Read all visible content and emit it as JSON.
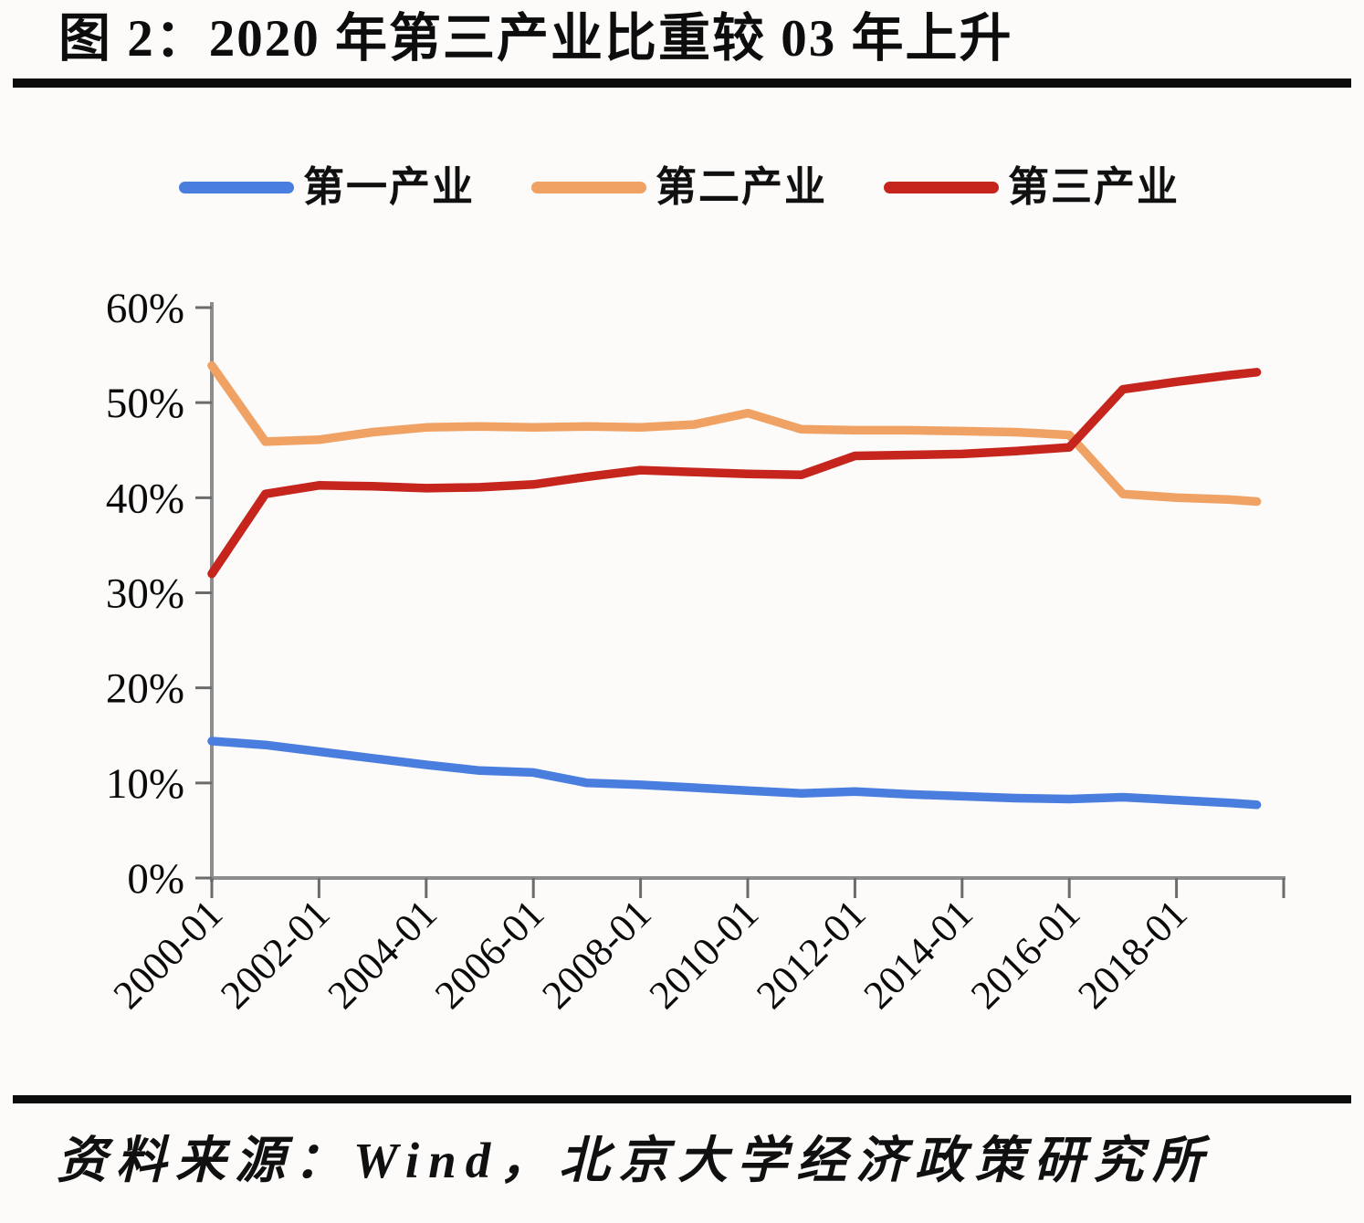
{
  "figure": {
    "title": "图 2：2020 年第三产业比重较 03 年上升",
    "source": "资料来源：Wind，北京大学经济政策研究所",
    "background_color": "#fcfbfa",
    "rule_color": "#0c0c0c"
  },
  "legend": {
    "items": [
      {
        "label": "第一产业",
        "color": "#4a7ede"
      },
      {
        "label": "第二产业",
        "color": "#f0a265"
      },
      {
        "label": "第三产业",
        "color": "#c5251d"
      }
    ]
  },
  "chart_data": {
    "type": "line",
    "title": "图 2：2020 年第三产业比重较 03 年上升",
    "xlabel": "",
    "ylabel": "",
    "grid": false,
    "legend_position": "top",
    "x": [
      2000,
      2001,
      2002,
      2003,
      2004,
      2005,
      2006,
      2007,
      2008,
      2009,
      2010,
      2011,
      2012,
      2013,
      2014,
      2015,
      2016,
      2017,
      2018,
      2019,
      2019.5
    ],
    "x_axis": {
      "range": [
        2000,
        2020
      ],
      "tick_years": [
        2000,
        2002,
        2004,
        2006,
        2008,
        2010,
        2012,
        2014,
        2016,
        2018
      ],
      "tick_labels": [
        "2000-01",
        "2002-01",
        "2004-01",
        "2006-01",
        "2008-01",
        "2010-01",
        "2012-01",
        "2014-01",
        "2016-01",
        "2018-01"
      ],
      "end_tick_year": 2020,
      "tick_label_rotation_deg": 45
    },
    "y_axis": {
      "range": [
        0,
        60
      ],
      "ticks": [
        0,
        10,
        20,
        30,
        40,
        50,
        60
      ],
      "suffix": "%"
    },
    "series": [
      {
        "name": "第一产业",
        "key": "primary-industry",
        "color": "#4a7ede",
        "values": [
          14.4,
          14.0,
          13.3,
          12.6,
          11.9,
          11.3,
          11.1,
          10.0,
          9.8,
          9.5,
          9.2,
          8.9,
          9.1,
          8.8,
          8.6,
          8.4,
          8.3,
          8.5,
          8.2,
          7.9,
          7.7
        ]
      },
      {
        "name": "第二产业",
        "key": "secondary-industry",
        "color": "#f0a265",
        "values": [
          53.9,
          45.9,
          46.1,
          46.9,
          47.4,
          47.5,
          47.4,
          47.5,
          47.4,
          47.7,
          48.9,
          47.2,
          47.1,
          47.1,
          47.0,
          46.9,
          46.6,
          40.4,
          40.0,
          39.8,
          39.6
        ]
      },
      {
        "name": "第三产业",
        "key": "tertiary-industry",
        "color": "#c5251d",
        "values": [
          32.0,
          40.4,
          41.3,
          41.2,
          41.0,
          41.1,
          41.4,
          42.2,
          42.9,
          42.7,
          42.5,
          42.4,
          44.4,
          44.5,
          44.6,
          44.9,
          45.3,
          51.4,
          52.2,
          52.9,
          53.2
        ]
      }
    ]
  }
}
